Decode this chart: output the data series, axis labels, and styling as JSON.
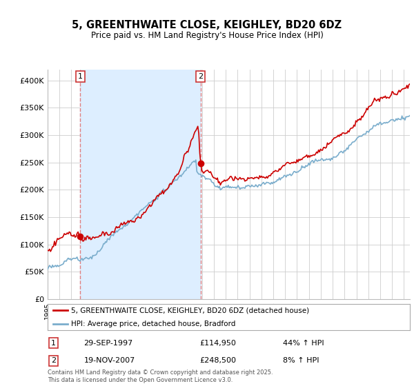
{
  "title": "5, GREENTHWAITE CLOSE, KEIGHLEY, BD20 6DZ",
  "subtitle": "Price paid vs. HM Land Registry's House Price Index (HPI)",
  "legend_line1": "5, GREENTHWAITE CLOSE, KEIGHLEY, BD20 6DZ (detached house)",
  "legend_line2": "HPI: Average price, detached house, Bradford",
  "sale1_label": "1",
  "sale1_date": "29-SEP-1997",
  "sale1_price": "£114,950",
  "sale1_hpi": "44% ↑ HPI",
  "sale1_year": 1997.75,
  "sale1_value": 114950,
  "sale2_label": "2",
  "sale2_date": "19-NOV-2007",
  "sale2_price": "£248,500",
  "sale2_hpi": "8% ↑ HPI",
  "sale2_year": 2007.88,
  "sale2_value": 248500,
  "red_color": "#cc0000",
  "blue_color": "#7aadcc",
  "shade_color": "#ddeeff",
  "dashed_color": "#e08080",
  "background_color": "#ffffff",
  "grid_color": "#cccccc",
  "ylim": [
    0,
    420000
  ],
  "xlim_start": 1995.0,
  "xlim_end": 2025.5,
  "footer": "Contains HM Land Registry data © Crown copyright and database right 2025.\nThis data is licensed under the Open Government Licence v3.0.",
  "yticks": [
    0,
    50000,
    100000,
    150000,
    200000,
    250000,
    300000,
    350000,
    400000
  ],
  "ytick_labels": [
    "£0",
    "£50K",
    "£100K",
    "£150K",
    "£200K",
    "£250K",
    "£300K",
    "£350K",
    "£400K"
  ]
}
